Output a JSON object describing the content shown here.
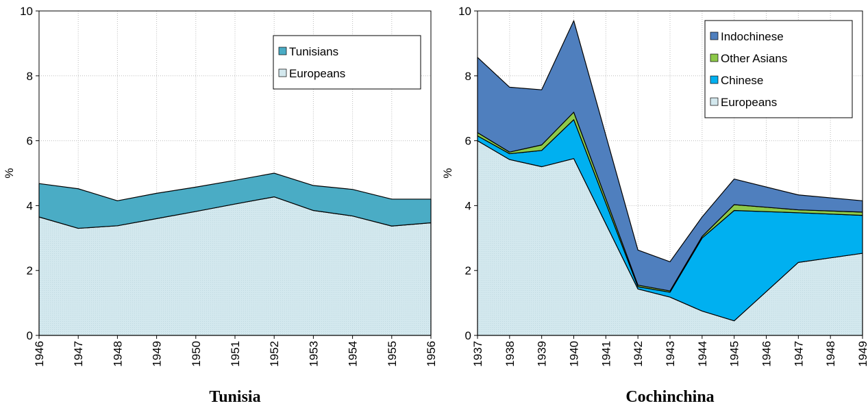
{
  "chart_data": [
    {
      "type": "area",
      "stacked": true,
      "title": "Tunisia",
      "y_label": "%",
      "x": [
        1946,
        1947,
        1948,
        1949,
        1950,
        1951,
        1952,
        1953,
        1954,
        1955,
        1956
      ],
      "xlim": [
        1946,
        1956
      ],
      "xticks": [
        1946,
        1947,
        1948,
        1949,
        1950,
        1951,
        1952,
        1953,
        1954,
        1955,
        1956
      ],
      "ylim": [
        0,
        10
      ],
      "yticks": [
        0,
        2,
        4,
        6,
        8,
        10
      ],
      "grid": true,
      "legend": "upper right",
      "series": [
        {
          "name": "Europeans",
          "color": "#d3e8ee",
          "values": [
            3.65,
            3.3,
            3.38,
            3.6,
            3.82,
            4.05,
            4.27,
            3.85,
            3.68,
            3.37,
            3.47
          ]
        },
        {
          "name": "Tunisians",
          "color": "#4aacc5",
          "values": [
            1.03,
            1.22,
            0.77,
            0.78,
            0.75,
            0.73,
            0.73,
            0.77,
            0.82,
            0.83,
            0.73
          ]
        }
      ]
    },
    {
      "type": "area",
      "stacked": true,
      "title": "Cochinchina",
      "y_label": "%",
      "x": [
        1937,
        1938,
        1939,
        1940,
        1942,
        1943,
        1944,
        1945,
        1947,
        1949
      ],
      "xlim": [
        1937,
        1949
      ],
      "xticks": [
        1937,
        1938,
        1939,
        1940,
        1941,
        1942,
        1943,
        1944,
        1945,
        1946,
        1947,
        1948,
        1949
      ],
      "ylim": [
        0,
        10
      ],
      "yticks": [
        0,
        2,
        4,
        6,
        8,
        10
      ],
      "grid": true,
      "legend": "upper right",
      "series": [
        {
          "name": "Europeans",
          "color": "#d3e8ee",
          "values": [
            6.0,
            5.42,
            5.2,
            5.45,
            1.43,
            1.18,
            0.75,
            0.45,
            2.25,
            2.53
          ]
        },
        {
          "name": "Chinese",
          "color": "#00b0f0",
          "values": [
            0.15,
            0.18,
            0.5,
            1.2,
            0.07,
            0.15,
            2.25,
            3.4,
            1.53,
            1.17
          ]
        },
        {
          "name": "Other Asians",
          "color": "#8dc94a",
          "values": [
            0.1,
            0.05,
            0.17,
            0.23,
            0.05,
            0.04,
            0.05,
            0.18,
            0.09,
            0.1
          ]
        },
        {
          "name": "Indochinese",
          "color": "#4f7fbe",
          "values": [
            2.32,
            2.0,
            1.7,
            2.82,
            1.08,
            0.9,
            0.6,
            0.79,
            0.46,
            0.35
          ]
        }
      ]
    }
  ]
}
